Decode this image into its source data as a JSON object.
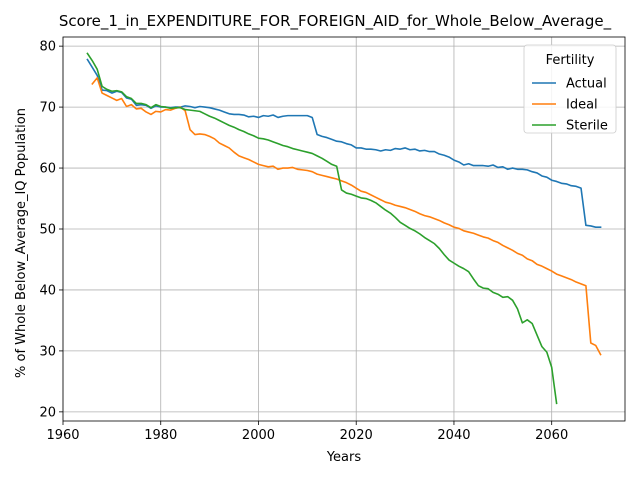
{
  "chart_data": {
    "type": "line",
    "title": "Score_1_in_EXPENDITURE_FOR_FOREIGN_AID_for_Whole_Below_Average_",
    "xlabel": "Years",
    "ylabel": "% of Whole Below_Average_IQ Population",
    "xlim": [
      1960,
      2075
    ],
    "ylim": [
      18.5,
      81.5
    ],
    "xticks": [
      1960,
      1980,
      2000,
      2020,
      2040,
      2060
    ],
    "yticks": [
      20,
      30,
      40,
      50,
      60,
      70,
      80
    ],
    "grid": true,
    "legend": {
      "title": "Fertility",
      "placement": "upper right"
    },
    "series": [
      {
        "name": "Actual",
        "color": "#1f77b4",
        "points": [
          [
            1965,
            77.8
          ],
          [
            1966,
            76.5
          ],
          [
            1967,
            75.2
          ],
          [
            1968,
            72.8
          ],
          [
            1969,
            72.7
          ],
          [
            1970,
            72.3
          ],
          [
            1971,
            72.6
          ],
          [
            1972,
            72.4
          ],
          [
            1973,
            71.5
          ],
          [
            1974,
            71.3
          ],
          [
            1975,
            70.3
          ],
          [
            1976,
            70.4
          ],
          [
            1977,
            70.3
          ],
          [
            1978,
            69.8
          ],
          [
            1979,
            70.2
          ],
          [
            1980,
            70.0
          ],
          [
            1981,
            70.0
          ],
          [
            1982,
            69.9
          ],
          [
            1983,
            70.0
          ],
          [
            1984,
            70.0
          ],
          [
            1985,
            70.2
          ],
          [
            1986,
            70.1
          ],
          [
            1987,
            69.9
          ],
          [
            1988,
            70.1
          ],
          [
            1989,
            70.0
          ],
          [
            1990,
            69.9
          ],
          [
            1991,
            69.7
          ],
          [
            1992,
            69.5
          ],
          [
            1993,
            69.2
          ],
          [
            1994,
            68.9
          ],
          [
            1995,
            68.8
          ],
          [
            1996,
            68.8
          ],
          [
            1997,
            68.7
          ],
          [
            1998,
            68.4
          ],
          [
            1999,
            68.5
          ],
          [
            2000,
            68.3
          ],
          [
            2001,
            68.6
          ],
          [
            2002,
            68.5
          ],
          [
            2003,
            68.7
          ],
          [
            2004,
            68.3
          ],
          [
            2005,
            68.5
          ],
          [
            2006,
            68.6
          ],
          [
            2007,
            68.6
          ],
          [
            2008,
            68.6
          ],
          [
            2009,
            68.6
          ],
          [
            2010,
            68.6
          ],
          [
            2011,
            68.3
          ],
          [
            2012,
            65.5
          ],
          [
            2013,
            65.2
          ],
          [
            2014,
            65.0
          ],
          [
            2015,
            64.7
          ],
          [
            2016,
            64.4
          ],
          [
            2017,
            64.3
          ],
          [
            2018,
            64.0
          ],
          [
            2019,
            63.8
          ],
          [
            2020,
            63.3
          ],
          [
            2021,
            63.3
          ],
          [
            2022,
            63.1
          ],
          [
            2023,
            63.1
          ],
          [
            2024,
            63.0
          ],
          [
            2025,
            62.8
          ],
          [
            2026,
            63.0
          ],
          [
            2027,
            62.9
          ],
          [
            2028,
            63.2
          ],
          [
            2029,
            63.1
          ],
          [
            2030,
            63.3
          ],
          [
            2031,
            63.0
          ],
          [
            2032,
            63.1
          ],
          [
            2033,
            62.8
          ],
          [
            2034,
            62.9
          ],
          [
            2035,
            62.7
          ],
          [
            2036,
            62.7
          ],
          [
            2037,
            62.3
          ],
          [
            2038,
            62.1
          ],
          [
            2039,
            61.8
          ],
          [
            2040,
            61.3
          ],
          [
            2041,
            61.0
          ],
          [
            2042,
            60.5
          ],
          [
            2043,
            60.7
          ],
          [
            2044,
            60.4
          ],
          [
            2045,
            60.4
          ],
          [
            2046,
            60.4
          ],
          [
            2047,
            60.3
          ],
          [
            2048,
            60.5
          ],
          [
            2049,
            60.1
          ],
          [
            2050,
            60.2
          ],
          [
            2051,
            59.8
          ],
          [
            2052,
            60.0
          ],
          [
            2053,
            59.8
          ],
          [
            2054,
            59.8
          ],
          [
            2055,
            59.7
          ],
          [
            2056,
            59.4
          ],
          [
            2057,
            59.2
          ],
          [
            2058,
            58.7
          ],
          [
            2059,
            58.5
          ],
          [
            2060,
            58.0
          ],
          [
            2061,
            57.8
          ],
          [
            2062,
            57.5
          ],
          [
            2063,
            57.4
          ],
          [
            2064,
            57.1
          ],
          [
            2065,
            57.0
          ],
          [
            2066,
            56.7
          ],
          [
            2067,
            50.6
          ],
          [
            2068,
            50.5
          ],
          [
            2069,
            50.3
          ],
          [
            2070,
            50.3
          ]
        ]
      },
      {
        "name": "Ideal",
        "color": "#ff7f0e",
        "points": [
          [
            1966,
            73.8
          ],
          [
            1967,
            74.8
          ],
          [
            1968,
            72.3
          ],
          [
            1969,
            71.9
          ],
          [
            1970,
            71.5
          ],
          [
            1971,
            71.1
          ],
          [
            1972,
            71.4
          ],
          [
            1973,
            70.1
          ],
          [
            1974,
            70.4
          ],
          [
            1975,
            69.7
          ],
          [
            1976,
            69.8
          ],
          [
            1977,
            69.2
          ],
          [
            1978,
            68.8
          ],
          [
            1979,
            69.3
          ],
          [
            1980,
            69.2
          ],
          [
            1981,
            69.6
          ],
          [
            1982,
            69.5
          ],
          [
            1983,
            69.8
          ],
          [
            1984,
            70.0
          ],
          [
            1985,
            69.4
          ],
          [
            1986,
            66.3
          ],
          [
            1987,
            65.5
          ],
          [
            1988,
            65.6
          ],
          [
            1989,
            65.5
          ],
          [
            1990,
            65.2
          ],
          [
            1991,
            64.8
          ],
          [
            1992,
            64.1
          ],
          [
            1993,
            63.7
          ],
          [
            1994,
            63.3
          ],
          [
            1995,
            62.6
          ],
          [
            1996,
            62.0
          ],
          [
            1997,
            61.7
          ],
          [
            1998,
            61.4
          ],
          [
            1999,
            61.0
          ],
          [
            2000,
            60.6
          ],
          [
            2001,
            60.4
          ],
          [
            2002,
            60.2
          ],
          [
            2003,
            60.3
          ],
          [
            2004,
            59.8
          ],
          [
            2005,
            60.0
          ],
          [
            2006,
            60.0
          ],
          [
            2007,
            60.1
          ],
          [
            2008,
            59.8
          ],
          [
            2009,
            59.7
          ],
          [
            2010,
            59.6
          ],
          [
            2011,
            59.4
          ],
          [
            2012,
            59.0
          ],
          [
            2013,
            58.8
          ],
          [
            2014,
            58.6
          ],
          [
            2015,
            58.4
          ],
          [
            2016,
            58.2
          ],
          [
            2017,
            57.9
          ],
          [
            2018,
            57.6
          ],
          [
            2019,
            57.2
          ],
          [
            2020,
            56.7
          ],
          [
            2021,
            56.2
          ],
          [
            2022,
            56.0
          ],
          [
            2023,
            55.6
          ],
          [
            2024,
            55.2
          ],
          [
            2025,
            54.8
          ],
          [
            2026,
            54.4
          ],
          [
            2027,
            54.2
          ],
          [
            2028,
            53.9
          ],
          [
            2029,
            53.7
          ],
          [
            2030,
            53.5
          ],
          [
            2031,
            53.2
          ],
          [
            2032,
            52.9
          ],
          [
            2033,
            52.5
          ],
          [
            2034,
            52.2
          ],
          [
            2035,
            52.0
          ],
          [
            2036,
            51.7
          ],
          [
            2037,
            51.4
          ],
          [
            2038,
            51.0
          ],
          [
            2039,
            50.7
          ],
          [
            2040,
            50.3
          ],
          [
            2041,
            50.1
          ],
          [
            2042,
            49.7
          ],
          [
            2043,
            49.5
          ],
          [
            2044,
            49.3
          ],
          [
            2045,
            49.0
          ],
          [
            2046,
            48.7
          ],
          [
            2047,
            48.5
          ],
          [
            2048,
            48.1
          ],
          [
            2049,
            47.8
          ],
          [
            2050,
            47.3
          ],
          [
            2051,
            46.9
          ],
          [
            2052,
            46.5
          ],
          [
            2053,
            46.0
          ],
          [
            2054,
            45.7
          ],
          [
            2055,
            45.1
          ],
          [
            2056,
            44.8
          ],
          [
            2057,
            44.2
          ],
          [
            2058,
            43.9
          ],
          [
            2059,
            43.5
          ],
          [
            2060,
            43.1
          ],
          [
            2061,
            42.6
          ],
          [
            2062,
            42.3
          ],
          [
            2063,
            42.0
          ],
          [
            2064,
            41.7
          ],
          [
            2065,
            41.3
          ],
          [
            2066,
            41.0
          ],
          [
            2067,
            40.7
          ],
          [
            2068,
            31.3
          ],
          [
            2069,
            30.9
          ],
          [
            2070,
            29.4
          ]
        ]
      },
      {
        "name": "Sterile",
        "color": "#2ca02c",
        "points": [
          [
            1965,
            78.8
          ],
          [
            1966,
            77.6
          ],
          [
            1967,
            76.2
          ],
          [
            1968,
            73.4
          ],
          [
            1969,
            72.9
          ],
          [
            1970,
            72.6
          ],
          [
            1971,
            72.7
          ],
          [
            1972,
            72.5
          ],
          [
            1973,
            71.7
          ],
          [
            1974,
            71.4
          ],
          [
            1975,
            70.6
          ],
          [
            1976,
            70.6
          ],
          [
            1977,
            70.4
          ],
          [
            1978,
            69.9
          ],
          [
            1979,
            70.4
          ],
          [
            1980,
            70.1
          ],
          [
            1981,
            70.0
          ],
          [
            1982,
            69.8
          ],
          [
            1983,
            69.9
          ],
          [
            1984,
            69.9
          ],
          [
            1985,
            69.6
          ],
          [
            1986,
            69.5
          ],
          [
            1987,
            69.4
          ],
          [
            1988,
            69.3
          ],
          [
            1989,
            68.9
          ],
          [
            1990,
            68.5
          ],
          [
            1991,
            68.2
          ],
          [
            1992,
            67.8
          ],
          [
            1993,
            67.4
          ],
          [
            1994,
            67.0
          ],
          [
            1995,
            66.7
          ],
          [
            1996,
            66.3
          ],
          [
            1997,
            66.0
          ],
          [
            1998,
            65.6
          ],
          [
            1999,
            65.3
          ],
          [
            2000,
            64.9
          ],
          [
            2001,
            64.8
          ],
          [
            2002,
            64.6
          ],
          [
            2003,
            64.3
          ],
          [
            2004,
            64.0
          ],
          [
            2005,
            63.7
          ],
          [
            2006,
            63.5
          ],
          [
            2007,
            63.2
          ],
          [
            2008,
            63.0
          ],
          [
            2009,
            62.8
          ],
          [
            2010,
            62.6
          ],
          [
            2011,
            62.4
          ],
          [
            2012,
            62.0
          ],
          [
            2013,
            61.6
          ],
          [
            2014,
            61.1
          ],
          [
            2015,
            60.6
          ],
          [
            2016,
            60.3
          ],
          [
            2017,
            56.4
          ],
          [
            2018,
            55.9
          ],
          [
            2019,
            55.7
          ],
          [
            2020,
            55.4
          ],
          [
            2021,
            55.1
          ],
          [
            2022,
            55.0
          ],
          [
            2023,
            54.7
          ],
          [
            2024,
            54.3
          ],
          [
            2025,
            53.7
          ],
          [
            2026,
            53.1
          ],
          [
            2027,
            52.6
          ],
          [
            2028,
            51.9
          ],
          [
            2029,
            51.1
          ],
          [
            2030,
            50.6
          ],
          [
            2031,
            50.1
          ],
          [
            2032,
            49.7
          ],
          [
            2033,
            49.2
          ],
          [
            2034,
            48.6
          ],
          [
            2035,
            48.1
          ],
          [
            2036,
            47.6
          ],
          [
            2037,
            46.8
          ],
          [
            2038,
            45.8
          ],
          [
            2039,
            44.9
          ],
          [
            2040,
            44.4
          ],
          [
            2041,
            43.9
          ],
          [
            2042,
            43.5
          ],
          [
            2043,
            43.0
          ],
          [
            2044,
            41.8
          ],
          [
            2045,
            40.7
          ],
          [
            2046,
            40.3
          ],
          [
            2047,
            40.2
          ],
          [
            2048,
            39.6
          ],
          [
            2049,
            39.3
          ],
          [
            2050,
            38.8
          ],
          [
            2051,
            38.9
          ],
          [
            2052,
            38.3
          ],
          [
            2053,
            36.9
          ],
          [
            2054,
            34.6
          ],
          [
            2055,
            35.1
          ],
          [
            2056,
            34.5
          ],
          [
            2057,
            32.6
          ],
          [
            2058,
            30.7
          ],
          [
            2059,
            29.8
          ],
          [
            2060,
            27.3
          ],
          [
            2061,
            21.4
          ]
        ]
      }
    ]
  }
}
